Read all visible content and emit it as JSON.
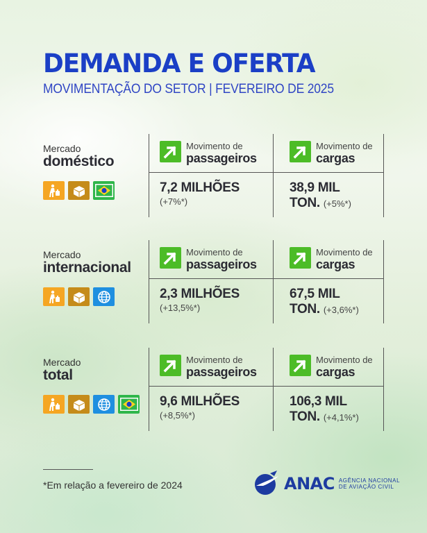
{
  "header": {
    "title": "DEMANDA E OFERTA",
    "subtitle": "MOVIMENTAÇÃO DO SETOR | FEVEREIRO DE 2025"
  },
  "rows": [
    {
      "label_small": "Mercado",
      "label_big": "doméstico",
      "icons": [
        "passenger-icon",
        "cargo-box-icon",
        "brazil-flag-icon"
      ],
      "passengers": {
        "head_small": "Movimento de",
        "head_big": "passageiros",
        "value": "7,2 MILHÕES",
        "pct": "(+7%*)"
      },
      "cargo": {
        "head_small": "Movimento de",
        "head_big": "cargas",
        "value": "38,9 MIL",
        "value2": "TON.",
        "pct": "(+5%*)"
      }
    },
    {
      "label_small": "Mercado",
      "label_big": "internacional",
      "icons": [
        "passenger-icon",
        "cargo-box-icon",
        "globe-icon"
      ],
      "passengers": {
        "head_small": "Movimento de",
        "head_big": "passageiros",
        "value": "2,3 MILHÕES",
        "pct": "(+13,5%*)"
      },
      "cargo": {
        "head_small": "Movimento de",
        "head_big": "cargas",
        "value": "67,5 MIL",
        "value2": "TON.",
        "pct": "(+3,6%*)"
      }
    },
    {
      "label_small": "Mercado",
      "label_big": "total",
      "icons": [
        "passenger-icon",
        "cargo-box-icon",
        "globe-icon",
        "brazil-flag-icon"
      ],
      "passengers": {
        "head_small": "Movimento de",
        "head_big": "passageiros",
        "value": "9,6 MILHÕES",
        "pct": "(+8,5%*)"
      },
      "cargo": {
        "head_small": "Movimento de",
        "head_big": "cargas",
        "value": "106,3 MIL",
        "value2": "TON.",
        "pct": "(+4,1%*)"
      }
    }
  ],
  "footer": {
    "note": "*Em relação a fevereiro de 2024",
    "logo_text": "ANAC",
    "logo_line1": "AGÊNCIA NACIONAL",
    "logo_line2": "DE AVIAÇÃO CIVIL"
  },
  "colors": {
    "title": "#1b3fc6",
    "arrow_green": "#4cbc27",
    "passenger_orange": "#f5a623",
    "cargo_brown": "#c58b1a",
    "globe_blue": "#1f8fe0",
    "flag_green": "#2fb64a"
  }
}
